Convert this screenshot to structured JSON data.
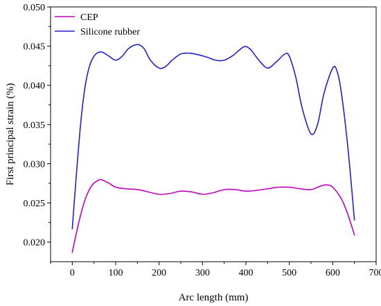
{
  "chart_data": {
    "type": "line",
    "xlabel": "Arc length (mm)",
    "ylabel": "First principal strain (%)",
    "xlim": [
      -50,
      700
    ],
    "ylim": [
      0.0175,
      0.05
    ],
    "xticks": [
      0,
      100,
      200,
      300,
      400,
      500,
      600,
      700
    ],
    "xtick_labels": [
      "0",
      "100",
      "200",
      "300",
      "400",
      "500",
      "600",
      "700"
    ],
    "yticks": [
      0.02,
      0.025,
      0.03,
      0.035,
      0.04,
      0.045,
      0.05
    ],
    "ytick_labels": [
      "0.020",
      "0.025",
      "0.030",
      "0.035",
      "0.040",
      "0.045",
      "0.050"
    ],
    "grid": false,
    "legend_position": "top-left",
    "series": [
      {
        "name": "CEP",
        "color": "#c000c0",
        "x": [
          0,
          15,
          30,
          45,
          60,
          70,
          85,
          100,
          125,
          150,
          175,
          200,
          225,
          250,
          275,
          300,
          325,
          350,
          375,
          400,
          425,
          450,
          475,
          500,
          525,
          550,
          570,
          585,
          600,
          620,
          635,
          650
        ],
        "y": [
          0.0187,
          0.0225,
          0.0255,
          0.0272,
          0.0279,
          0.0279,
          0.0275,
          0.027,
          0.0268,
          0.0267,
          0.0264,
          0.0261,
          0.0262,
          0.0265,
          0.0264,
          0.0261,
          0.0263,
          0.0267,
          0.0267,
          0.0265,
          0.0266,
          0.0268,
          0.027,
          0.027,
          0.0268,
          0.0267,
          0.0271,
          0.0273,
          0.027,
          0.0255,
          0.0235,
          0.0209
        ]
      },
      {
        "name": "Silicone rubber",
        "color": "#1f1fd0",
        "x": [
          0,
          10,
          20,
          30,
          40,
          50,
          60,
          70,
          85,
          100,
          115,
          130,
          150,
          165,
          180,
          200,
          215,
          230,
          250,
          270,
          290,
          310,
          330,
          350,
          370,
          395,
          410,
          430,
          450,
          470,
          490,
          500,
          515,
          530,
          550,
          565,
          580,
          600,
          610,
          620,
          635,
          650
        ],
        "y": [
          0.0217,
          0.029,
          0.0355,
          0.04,
          0.0425,
          0.0437,
          0.0442,
          0.0442,
          0.0437,
          0.0432,
          0.0437,
          0.0447,
          0.0452,
          0.0447,
          0.0432,
          0.0422,
          0.0424,
          0.0432,
          0.044,
          0.0441,
          0.0439,
          0.0436,
          0.0432,
          0.0432,
          0.0438,
          0.0449,
          0.0446,
          0.0432,
          0.0422,
          0.043,
          0.044,
          0.0437,
          0.041,
          0.037,
          0.0338,
          0.035,
          0.039,
          0.0422,
          0.0418,
          0.039,
          0.032,
          0.0228
        ]
      }
    ]
  }
}
